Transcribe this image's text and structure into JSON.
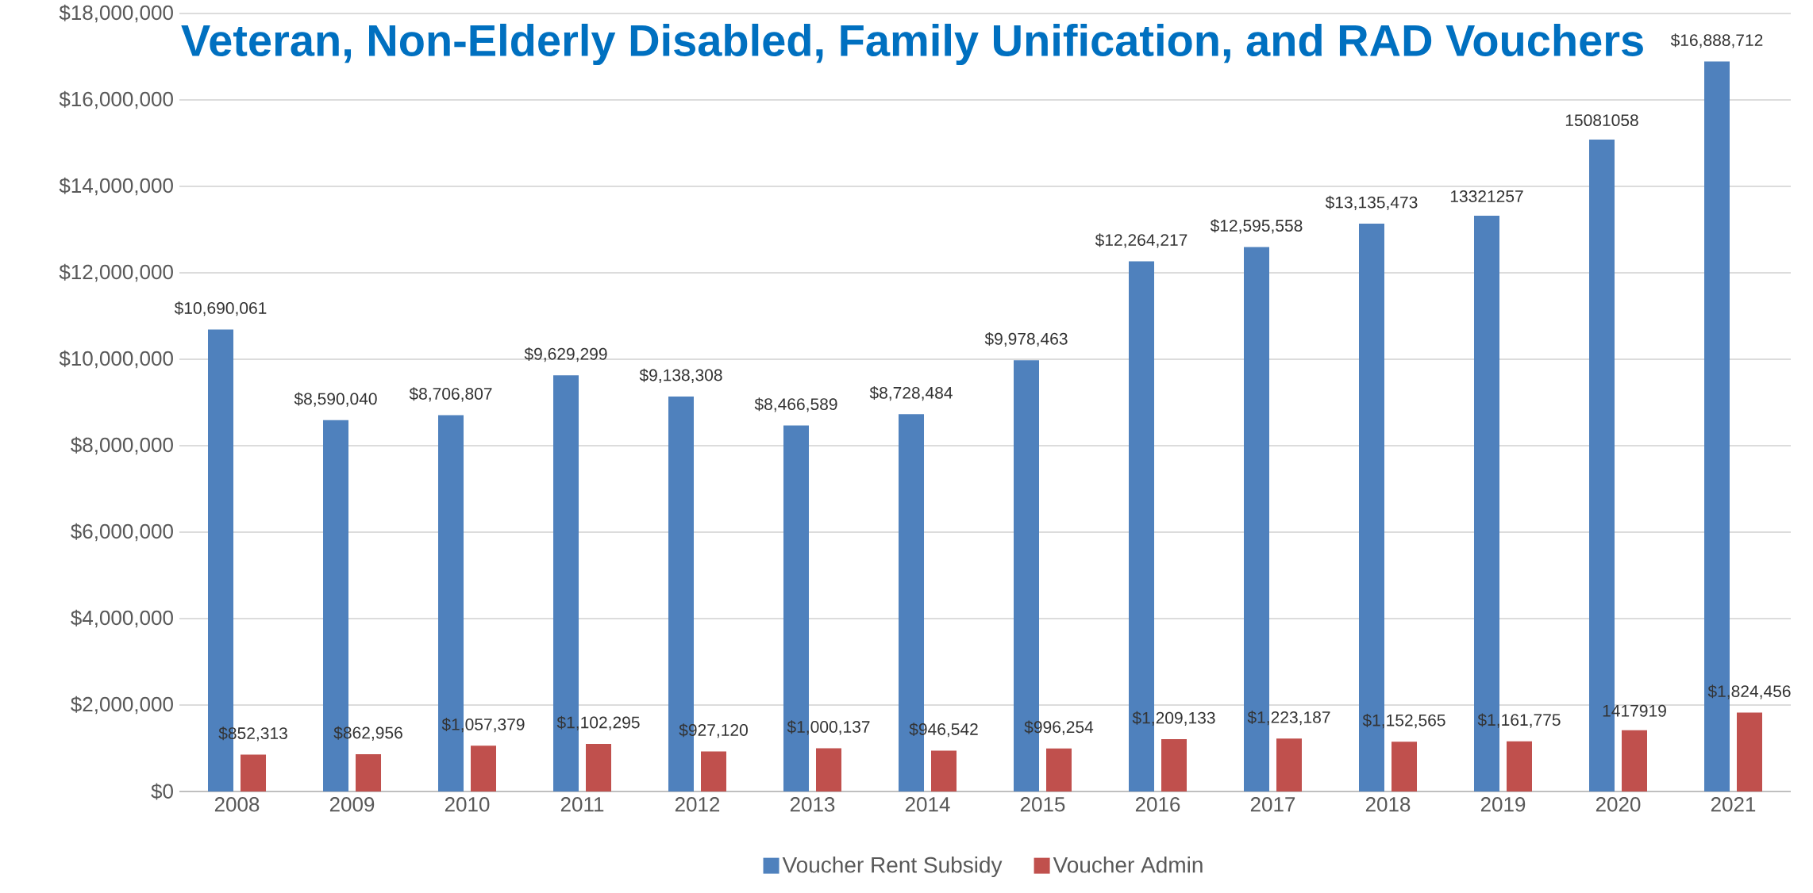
{
  "chart_data": {
    "type": "bar",
    "title": "Veteran, Non-Elderly Disabled, Family Unification, and RAD Vouchers",
    "categories": [
      "2008",
      "2009",
      "2010",
      "2011",
      "2012",
      "2013",
      "2014",
      "2015",
      "2016",
      "2017",
      "2018",
      "2019",
      "2020",
      "2021"
    ],
    "series": [
      {
        "name": "Voucher Rent Subsidy",
        "color": "#4f81bd",
        "values": [
          10690061,
          8590040,
          8706807,
          9629299,
          9138308,
          8466589,
          8728484,
          9978463,
          12264217,
          12595558,
          13135473,
          13321257,
          15081058,
          16888712
        ],
        "value_labels": [
          "$10,690,061",
          "$8,590,040",
          "$8,706,807",
          "$9,629,299",
          "$9,138,308",
          "$8,466,589",
          "$8,728,484",
          "$9,978,463",
          "$12,264,217",
          "$12,595,558",
          "$13,135,473",
          "13321257",
          "15081058",
          "$16,888,712"
        ]
      },
      {
        "name": "Voucher Admin",
        "color": "#c0504d",
        "values": [
          852313,
          862956,
          1057379,
          1102295,
          927120,
          1000137,
          946542,
          996254,
          1209133,
          1223187,
          1152565,
          1161775,
          1417919,
          1824456
        ],
        "value_labels": [
          "$852,313",
          "$862,956",
          "$1,057,379",
          "$1,102,295",
          "$927,120",
          "$1,000,137",
          "$946,542",
          "$996,254",
          "$1,209,133",
          "$1,223,187",
          "$1,152,565",
          "$1,161,775",
          "1417919",
          "$1,824,456"
        ]
      }
    ],
    "ylim": [
      0,
      18000000
    ],
    "yticks": [
      {
        "value": 0,
        "label": "$0"
      },
      {
        "value": 2000000,
        "label": "$2,000,000"
      },
      {
        "value": 4000000,
        "label": "$4,000,000"
      },
      {
        "value": 6000000,
        "label": "$6,000,000"
      },
      {
        "value": 8000000,
        "label": "$8,000,000"
      },
      {
        "value": 10000000,
        "label": "$10,000,000"
      },
      {
        "value": 12000000,
        "label": "$12,000,000"
      },
      {
        "value": 14000000,
        "label": "$14,000,000"
      },
      {
        "value": 16000000,
        "label": "$16,000,000"
      },
      {
        "value": 18000000,
        "label": "$18,000,000"
      }
    ],
    "grid": "y",
    "legend": "bottom"
  }
}
